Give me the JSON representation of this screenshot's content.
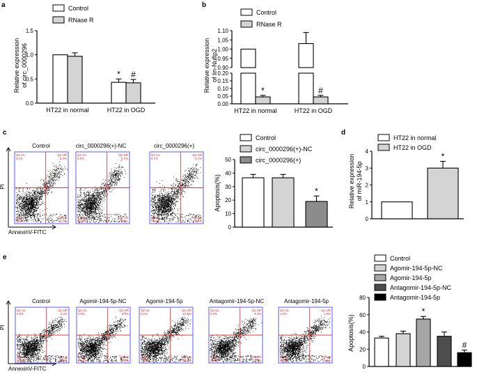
{
  "panels": {
    "a": {
      "letter": "a",
      "ylabel_line1": "Relative expression",
      "ylabel_line2": "of circ_0000296"
    },
    "b": {
      "letter": "b",
      "ylabel_line1": "Relative expression",
      "ylabel_line2": "of lin-Nuflp2"
    },
    "c": {
      "letter": "c",
      "facs_titles": [
        "Control",
        "circ_0000296(+)-NC",
        "circ_0000296(+)"
      ],
      "axis_y": "PI",
      "axis_x": "AnnexinV-FITC"
    },
    "d": {
      "letter": "d",
      "ylabel_line1": "Relative expression",
      "ylabel_line2": "of miR-194-5p"
    },
    "e": {
      "letter": "e",
      "facs_titles": [
        "Control",
        "Agomir-194-5p-NC",
        "Agomir-194-5p",
        "Antagomir-194-5p-NC",
        "Antagomir-194-5p"
      ],
      "axis_y": "PI",
      "axis_x": "AnnexinV-FITC"
    }
  },
  "quadrants": {
    "labels": [
      "Q1-UL",
      "Q1-UR",
      "Q1-LL",
      "Q1-LR"
    ],
    "c": [
      {
        "ul": "6.1%",
        "ur": "6.4%",
        "ll": "83.8%",
        "lr": "3.7%"
      },
      {
        "ul": "6.0%",
        "ur": "5.1%",
        "ll": "83.4%",
        "lr": "5.5%"
      },
      {
        "ul": "5.1%",
        "ur": "6.1%",
        "ll": "79.4%",
        "lr": "9.4%"
      }
    ],
    "e": [
      {
        "ul": "0.0%",
        "ur": "8.3%",
        "ll": "86.2%",
        "lr": "5.5%"
      },
      {
        "ul": "0.0%",
        "ur": "8.4%",
        "ll": "81.1%",
        "lr": "10.5%"
      },
      {
        "ul": "0.1%",
        "ur": "10.5%",
        "ll": "74.0%",
        "lr": "15.4%"
      },
      {
        "ul": "0.0%",
        "ur": "7.3%",
        "ll": "83.5%",
        "lr": "9.2%"
      },
      {
        "ul": "1.2%",
        "ur": "1.3%",
        "ll": "90.1%",
        "lr": "7.4%"
      }
    ]
  },
  "chart_data": [
    {
      "id": "a",
      "type": "bar",
      "categories": [
        "HT22 in normal",
        "HT22 in OGD"
      ],
      "series": [
        {
          "name": "Control",
          "color": "#ffffff",
          "values": [
            1.0,
            0.43
          ],
          "errors": [
            0.0,
            0.07
          ],
          "marks": [
            "",
            "*"
          ]
        },
        {
          "name": "RNase R",
          "color": "#d4d4d4",
          "values": [
            0.97,
            0.42
          ],
          "errors": [
            0.07,
            0.07
          ],
          "marks": [
            "",
            "#"
          ]
        }
      ],
      "ylim": [
        0,
        1.5
      ],
      "yticks": [
        0.0,
        0.5,
        1.0,
        1.5
      ],
      "ylabel": "Relative expression of circ_0000296"
    },
    {
      "id": "b",
      "type": "bar",
      "categories": [
        "HT22 in normal",
        "HT22 in OGD"
      ],
      "series": [
        {
          "name": "Control",
          "color": "#ffffff",
          "values": [
            1.0,
            1.03
          ],
          "errors": [
            0.0,
            0.06
          ],
          "marks": [
            "",
            ""
          ]
        },
        {
          "name": "RNase R",
          "color": "#d4d4d4",
          "values": [
            0.045,
            0.045
          ],
          "errors": [
            0.01,
            0.01
          ],
          "marks": [
            "*",
            "#"
          ]
        }
      ],
      "broken_axis": true,
      "yticks_upper": [
        "0.90",
        "0.95",
        "1.00",
        "1.05",
        "1.10"
      ],
      "yticks_lower": [
        "0.00",
        "0.05",
        "0.10",
        "0.15",
        "0.20"
      ],
      "ylabel": "Relative expression of lin-Nuflp2"
    },
    {
      "id": "c",
      "type": "bar",
      "categories": [
        "Control",
        "circ_0000296(+)-NC",
        "circ_0000296(+)"
      ],
      "values": [
        36.5,
        36.5,
        19
      ],
      "errors": [
        2.5,
        2.5,
        4
      ],
      "colors": [
        "#ffffff",
        "#d4d4d4",
        "#8c8c8c"
      ],
      "marks": [
        "",
        "",
        "*"
      ],
      "ylim": [
        0,
        50
      ],
      "yticks": [
        0,
        10,
        20,
        30,
        40,
        50
      ],
      "ylabel": "Apoptosis(%)",
      "legend": [
        "Control",
        "circ_0000296(+)-NC",
        "circ_0000296(+)"
      ]
    },
    {
      "id": "d",
      "type": "bar",
      "categories": [
        "HT22 in normal",
        "HT22 in OGD"
      ],
      "values": [
        1.0,
        3.0
      ],
      "errors": [
        0.0,
        0.4
      ],
      "colors": [
        "#ffffff",
        "#d4d4d4"
      ],
      "marks": [
        "",
        "*"
      ],
      "ylim": [
        0,
        4
      ],
      "yticks": [
        0,
        1,
        2,
        3,
        4
      ],
      "ylabel": "Relative expression of miR-194-5p",
      "legend": [
        "HT22 in normal",
        "HT22 in OGD"
      ]
    },
    {
      "id": "e",
      "type": "bar",
      "categories": [
        "Control",
        "Agomir-194-5p-NC",
        "Agomir-194-5p",
        "Antagomir-194-5p-NC",
        "Antagomir-194-5p"
      ],
      "values": [
        33,
        38,
        55,
        35,
        16
      ],
      "errors": [
        2,
        3,
        3,
        5,
        3
      ],
      "colors": [
        "#ffffff",
        "#d4d4d4",
        "#a6a6a6",
        "#4d4d4d",
        "#000000"
      ],
      "marks": [
        "",
        "",
        "*",
        "",
        "#"
      ],
      "ylim": [
        0,
        80
      ],
      "yticks": [
        0,
        20,
        40,
        60,
        80
      ],
      "ylabel": "Apoptosis(%)",
      "legend": [
        "Control",
        "Agomir-194-5p-NC",
        "Agomir-194-5p",
        "Antagomir-194-5p-NC",
        "Antagomir-194-5p"
      ]
    }
  ]
}
